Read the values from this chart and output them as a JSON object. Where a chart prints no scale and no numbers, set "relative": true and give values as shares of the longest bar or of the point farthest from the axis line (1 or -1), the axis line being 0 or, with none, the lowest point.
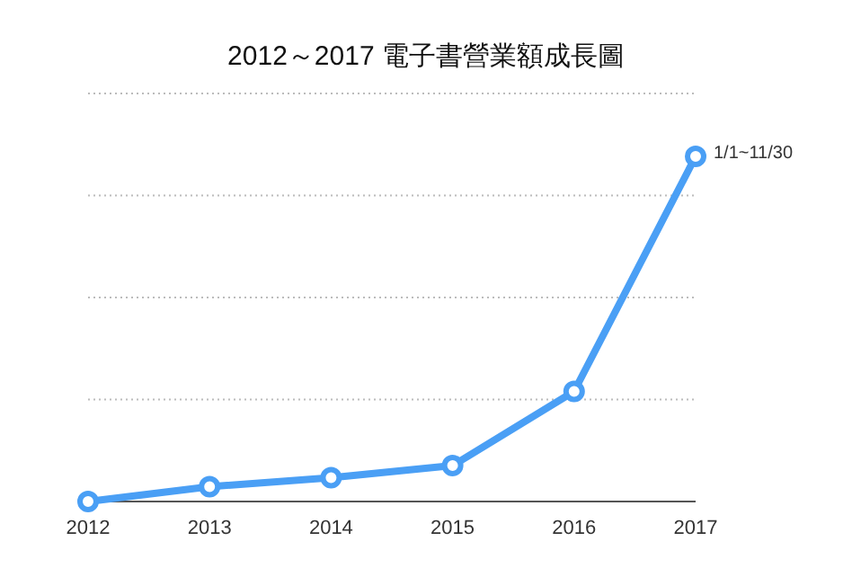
{
  "chart_data": {
    "type": "line",
    "title": "2012～2017 電子書營業額成長圖",
    "categories": [
      "2012",
      "2013",
      "2014",
      "2015",
      "2016",
      "2017"
    ],
    "series": [
      {
        "color": "#4a9ff5",
        "values": [
          0,
          0.043,
          0.069,
          0.104,
          0.319,
          1
        ]
      }
    ],
    "relative": true,
    "grid": "y",
    "marker": "circle",
    "line_style": "solid",
    "annotations": [
      {
        "text": "1/1~11/30",
        "x": "2017",
        "y": 1
      }
    ]
  }
}
